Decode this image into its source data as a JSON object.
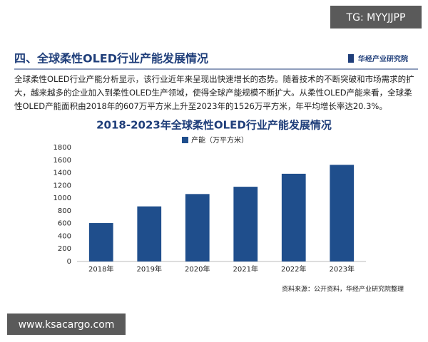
{
  "tag": "TG: MYYJJPP",
  "header": {
    "title": "四、全球柔性OLED行业产能发展情况",
    "logo": "华经产业研究院"
  },
  "paragraph": "全球柔性OLED行业产能分析显示，该行业近年来呈现出快速增长的态势。随着技术的不断突破和市场需求的扩大，越来越多的企业加入到柔性OLED生产领域，使得全球产能规模不断扩大。从柔性OLED产能来看，全球柔性OLED产能面积由2018年的607万平方米上升至2023年的1526万平方米，年平均增长率达20.3%。",
  "chart_data": {
    "type": "bar",
    "title": "2018-2023年全球柔性OLED行业产能发展情况",
    "categories": [
      "2018年",
      "2019年",
      "2020年",
      "2021年",
      "2022年",
      "2023年"
    ],
    "series": [
      {
        "name": "产能（万平方米）",
        "color": "#1f4e8c",
        "values": [
          607,
          870,
          1065,
          1180,
          1385,
          1526
        ]
      }
    ],
    "ylim": [
      0,
      1800
    ],
    "yticks": [
      0,
      200,
      400,
      600,
      800,
      1000,
      1200,
      1400,
      1600,
      1800
    ],
    "grid": false,
    "legend": "top"
  },
  "source": "资料来源：公开资料，华经产业研究院整理",
  "site": "www.ksacargo.com"
}
